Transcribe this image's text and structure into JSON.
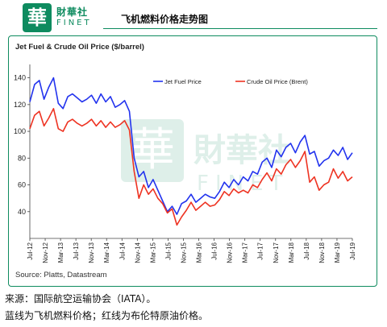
{
  "header": {
    "logo_glyph": "華",
    "brand_cn": "財華社",
    "brand_en": "FINET",
    "title": "飞机燃料价格走势图"
  },
  "chart_data": {
    "type": "line",
    "title": "Jet Fuel & Crude Oil Price ($/barrel)",
    "ylim": [
      20,
      150
    ],
    "yticks": [
      40,
      60,
      80,
      100,
      120,
      140
    ],
    "grid": false,
    "legend_position": "top",
    "x_labels": [
      "Jul-12",
      "Nov-12",
      "Mar-13",
      "Jul-13",
      "Nov-13",
      "Mar-14",
      "Jul-14",
      "Nov-14",
      "Mar-15",
      "Jul-15",
      "Nov-15",
      "Mar-16",
      "Jul-16",
      "Nov-16",
      "Mar-17",
      "Jul-17",
      "Nov-17",
      "Mar-18",
      "Jul-18",
      "Nov-18",
      "Mar-19",
      "Jul-19"
    ],
    "series": [
      {
        "name": "Jet Fuel Price",
        "color": "#2233ee",
        "values": [
          122,
          135,
          138,
          124,
          133,
          140,
          121,
          117,
          126,
          128,
          125,
          122,
          124,
          127,
          121,
          128,
          122,
          126,
          118,
          120,
          123,
          115,
          80,
          66,
          70,
          58,
          64,
          56,
          48,
          40,
          44,
          38,
          46,
          48,
          53,
          47,
          50,
          53,
          51,
          50,
          55,
          62,
          58,
          64,
          60,
          66,
          63,
          70,
          68,
          77,
          80,
          73,
          86,
          81,
          88,
          91,
          84,
          92,
          97,
          83,
          85,
          74,
          78,
          80,
          86,
          82,
          88,
          79,
          84
        ]
      },
      {
        "name": "Crude Oil Price (Brent)",
        "color": "#ee3322",
        "values": [
          102,
          112,
          115,
          104,
          110,
          117,
          102,
          100,
          107,
          109,
          106,
          104,
          106,
          109,
          104,
          108,
          103,
          107,
          103,
          105,
          108,
          101,
          70,
          50,
          60,
          53,
          57,
          50,
          46,
          39,
          42,
          30,
          36,
          41,
          47,
          41,
          44,
          47,
          44,
          45,
          49,
          55,
          52,
          57,
          54,
          56,
          54,
          60,
          58,
          64,
          69,
          63,
          72,
          68,
          75,
          79,
          73,
          78,
          85,
          62,
          66,
          56,
          60,
          62,
          72,
          65,
          70,
          63,
          66
        ]
      }
    ],
    "source": "Source: Platts, Datastream",
    "watermark_cn": "財華社",
    "watermark_en": "FINET"
  },
  "footnotes": {
    "line1": "来源：国际航空运输协会（IATA）。",
    "line2": "蓝线为飞机燃料价格；红线为布伦特原油价格。"
  }
}
